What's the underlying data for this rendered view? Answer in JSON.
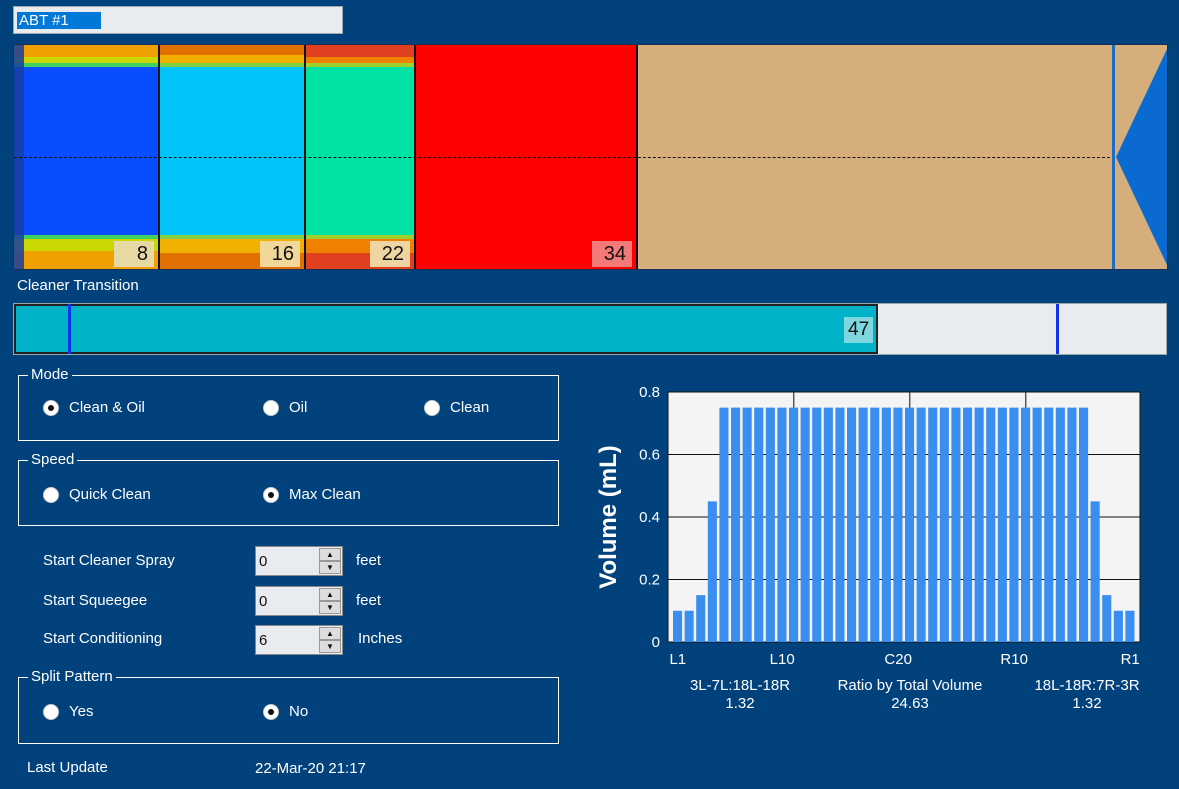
{
  "title_field": {
    "value": "ABT #1"
  },
  "lane": {
    "segments": [
      {
        "number": "8",
        "color": "#0a4cff"
      },
      {
        "number": "16",
        "color": "#00c4f9"
      },
      {
        "number": "22",
        "color": "#00e3a2"
      },
      {
        "number": "34",
        "color": "#ff0000"
      }
    ],
    "dry_color": "#d6ae7b",
    "arrow_color": "#0a6ad0"
  },
  "cleaner_transition": {
    "label": "Cleaner Transition",
    "value": "47"
  },
  "mode": {
    "legend": "Mode",
    "options": [
      "Clean & Oil",
      "Oil",
      "Clean"
    ],
    "selected": "Clean & Oil"
  },
  "speed": {
    "legend": "Speed",
    "options": [
      "Quick Clean",
      "Max Clean"
    ],
    "selected": "Max Clean"
  },
  "settings": [
    {
      "label": "Start Cleaner Spray",
      "value": "0",
      "unit": "feet"
    },
    {
      "label": "Start Squeegee",
      "value": "0",
      "unit": "feet"
    },
    {
      "label": "Start Conditioning",
      "value": "6",
      "unit": "Inches"
    }
  ],
  "split_pattern": {
    "legend": "Split Pattern",
    "options": [
      "Yes",
      "No"
    ],
    "selected": "No"
  },
  "last_update": {
    "label": "Last Update",
    "value": "22-Mar-20 21:17"
  },
  "chart_data": {
    "type": "bar",
    "ylabel": "Volume (mL)",
    "ylim": [
      0,
      0.8
    ],
    "yticks": [
      "0",
      "0.2",
      "0.4",
      "0.6",
      "0.8"
    ],
    "xtick_labels": [
      "L1",
      "L10",
      "C20",
      "R10",
      "R1"
    ],
    "grid": true,
    "values": [
      0.1,
      0.1,
      0.15,
      0.45,
      0.75,
      0.75,
      0.75,
      0.75,
      0.75,
      0.75,
      0.75,
      0.75,
      0.75,
      0.75,
      0.75,
      0.75,
      0.75,
      0.75,
      0.75,
      0.75,
      0.75,
      0.75,
      0.75,
      0.75,
      0.75,
      0.75,
      0.75,
      0.75,
      0.75,
      0.75,
      0.75,
      0.75,
      0.75,
      0.75,
      0.75,
      0.75,
      0.45,
      0.15,
      0.1,
      0.1
    ],
    "bar_color": "#3a8ef0"
  },
  "ratios": [
    {
      "label": "3L-7L:18L-18R",
      "value": "1.32"
    },
    {
      "label": "Ratio by Total Volume",
      "value": "24.63"
    },
    {
      "label": "18L-18R:7R-3R",
      "value": "1.32"
    }
  ]
}
